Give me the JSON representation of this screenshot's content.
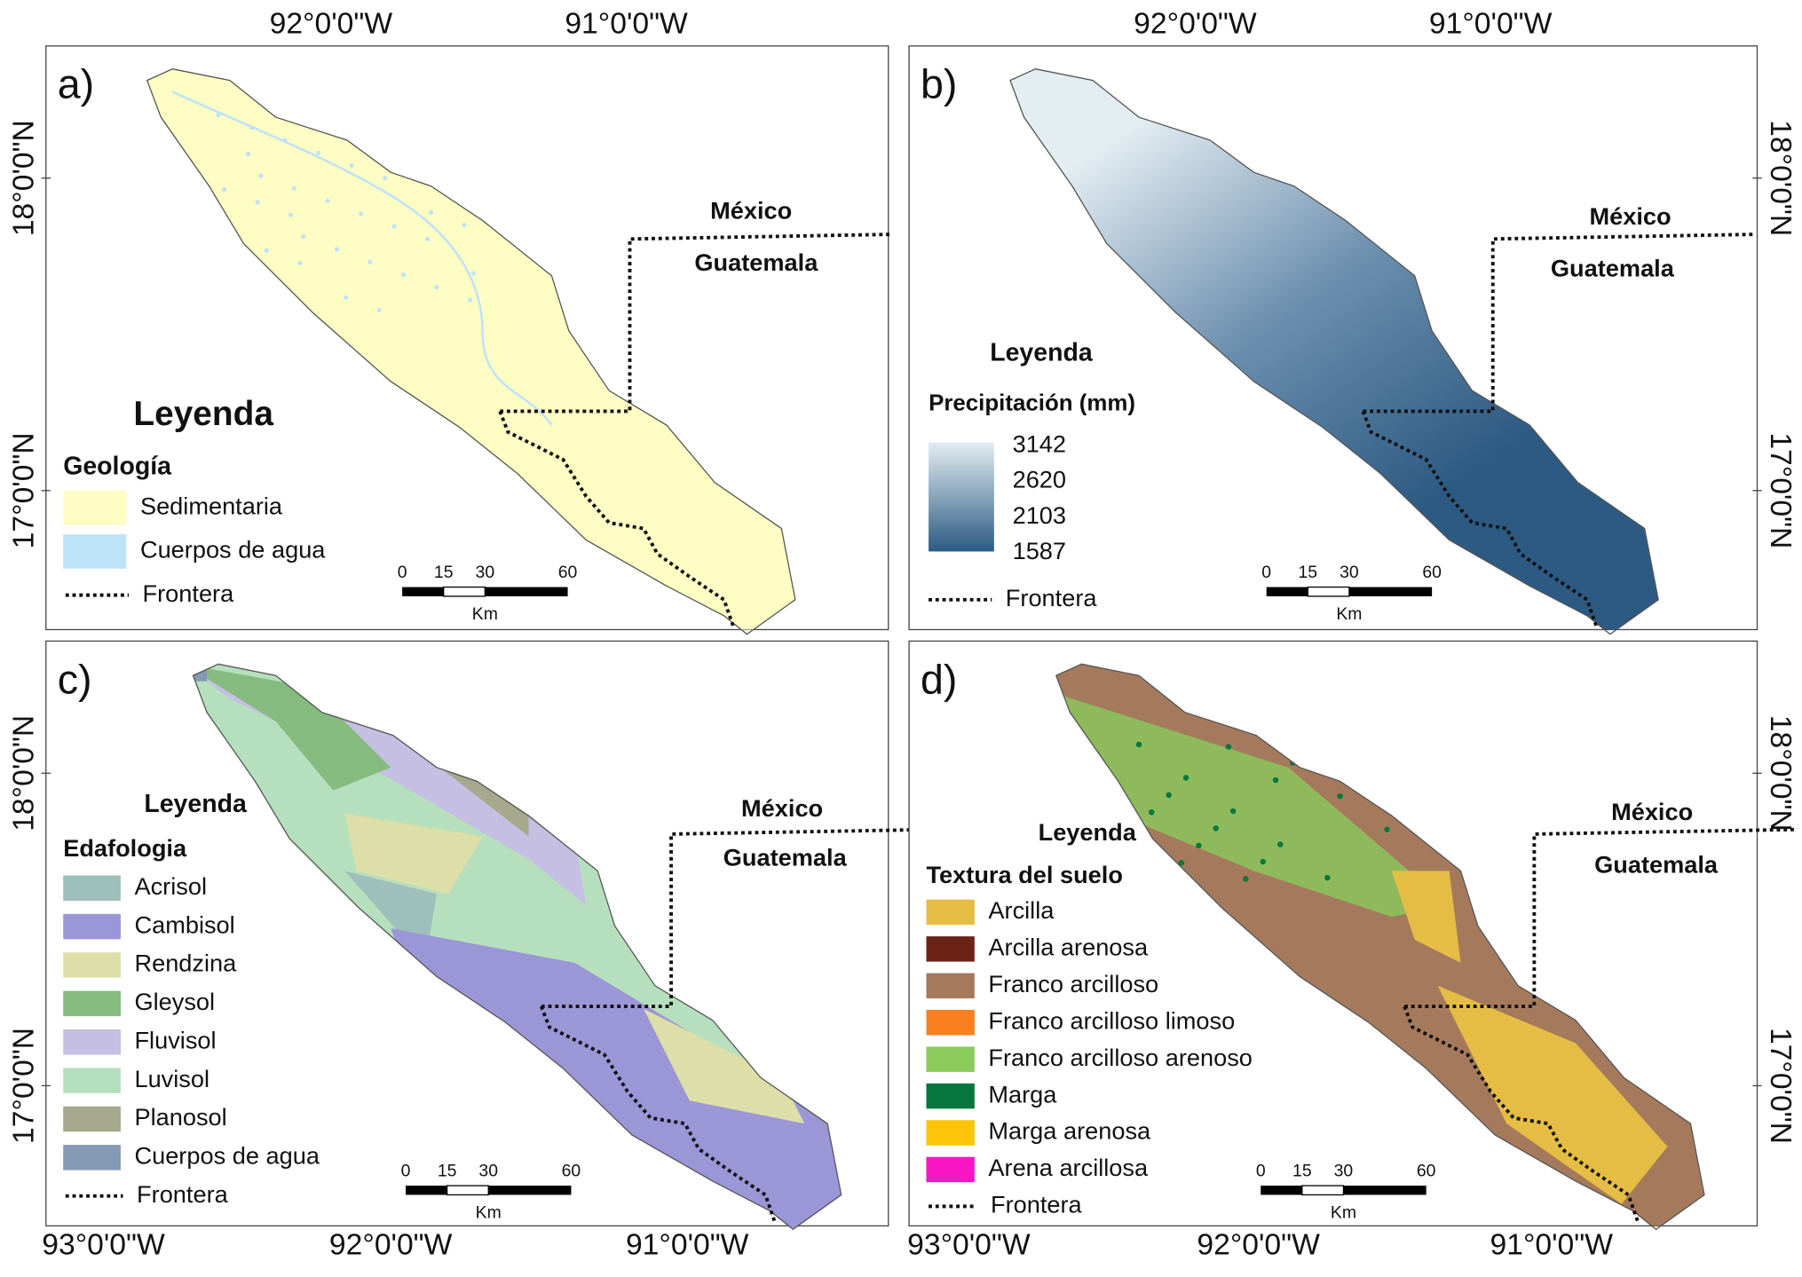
{
  "panels": [
    {
      "label": "a)",
      "top_ticks": [
        "92°0'0\"W",
        "91°0'0\"W"
      ],
      "side_ticks": [
        "18°0'0\"N",
        "17°0'0\"N"
      ],
      "country_north": "México",
      "country_south": "Guatemala",
      "legend": {
        "title": "Leyenda",
        "subtitle": "Geología",
        "items": [
          {
            "label": "Sedimentaria",
            "color": "#fdfdc4"
          },
          {
            "label": "Cuerpos de agua",
            "color": "#bfe3f7"
          }
        ],
        "border": "Frontera"
      },
      "scale": {
        "ticks": [
          "0",
          "15",
          "30",
          "60"
        ],
        "unit": "Km"
      }
    },
    {
      "label": "b)",
      "top_ticks": [
        "92°0'0\"W",
        "91°0'0\"W"
      ],
      "side_ticks": [
        "18°0'0\"N",
        "17°0'0\"N"
      ],
      "country_north": "México",
      "country_south": "Guatemala",
      "legend": {
        "title": "Leyenda",
        "subtitle": "Precipitación (mm)",
        "gradient_labels": [
          "3142",
          "2620",
          "2103",
          "1587"
        ],
        "gradient_colors": [
          "#2c5a83",
          "#e3edf2"
        ],
        "border": "Frontera"
      },
      "scale": {
        "ticks": [
          "0",
          "15",
          "30",
          "60"
        ],
        "unit": "Km"
      }
    },
    {
      "label": "c)",
      "bottom_ticks": [
        "93°0'0\"W",
        "92°0'0\"W",
        "91°0'0\"W"
      ],
      "side_ticks": [
        "18°0'0\"N",
        "17°0'0\"N"
      ],
      "country_north": "México",
      "country_south": "Guatemala",
      "legend": {
        "title": "Leyenda",
        "subtitle": "Edafologia",
        "items": [
          {
            "label": "Acrisol",
            "color": "#9fbfbb"
          },
          {
            "label": "Cambisol",
            "color": "#9b96d6"
          },
          {
            "label": "Rendzina",
            "color": "#dedea8"
          },
          {
            "label": "Gleysol",
            "color": "#86bb80"
          },
          {
            "label": "Fluvisol",
            "color": "#c5bfe3"
          },
          {
            "label": "Luvisol",
            "color": "#b6e0bd"
          },
          {
            "label": "Planosol",
            "color": "#a6a98c"
          },
          {
            "label": "Cuerpos de agua",
            "color": "#8499b3"
          }
        ],
        "border": "Frontera"
      },
      "scale": {
        "ticks": [
          "0",
          "15",
          "30",
          "60"
        ],
        "unit": "Km"
      }
    },
    {
      "label": "d)",
      "bottom_ticks": [
        "93°0'0\"W",
        "92°0'0\"W",
        "91°0'0\"W"
      ],
      "side_ticks": [
        "18°0'0\"N",
        "17°0'0\"N"
      ],
      "country_north": "México",
      "country_south": "Guatemala",
      "legend": {
        "title": "Leyenda",
        "subtitle": "Textura del suelo",
        "items": [
          {
            "label": "Arcilla",
            "color": "#e6bd44"
          },
          {
            "label": "Arcilla arenosa",
            "color": "#6b2318"
          },
          {
            "label": "Franco arcilloso",
            "color": "#a57a5c"
          },
          {
            "label": "Franco arcilloso limoso",
            "color": "#fb7f1d"
          },
          {
            "label": "Franco arcilloso arenoso",
            "color": "#8acb5c"
          },
          {
            "label": "Marga",
            "color": "#07773e"
          },
          {
            "label": "Marga arenosa",
            "color": "#fdc40a"
          },
          {
            "label": "Arena arcillosa",
            "color": "#f816c4"
          }
        ],
        "border": "Frontera"
      },
      "scale": {
        "ticks": [
          "0",
          "15",
          "30",
          "60"
        ],
        "unit": "Km"
      }
    }
  ]
}
